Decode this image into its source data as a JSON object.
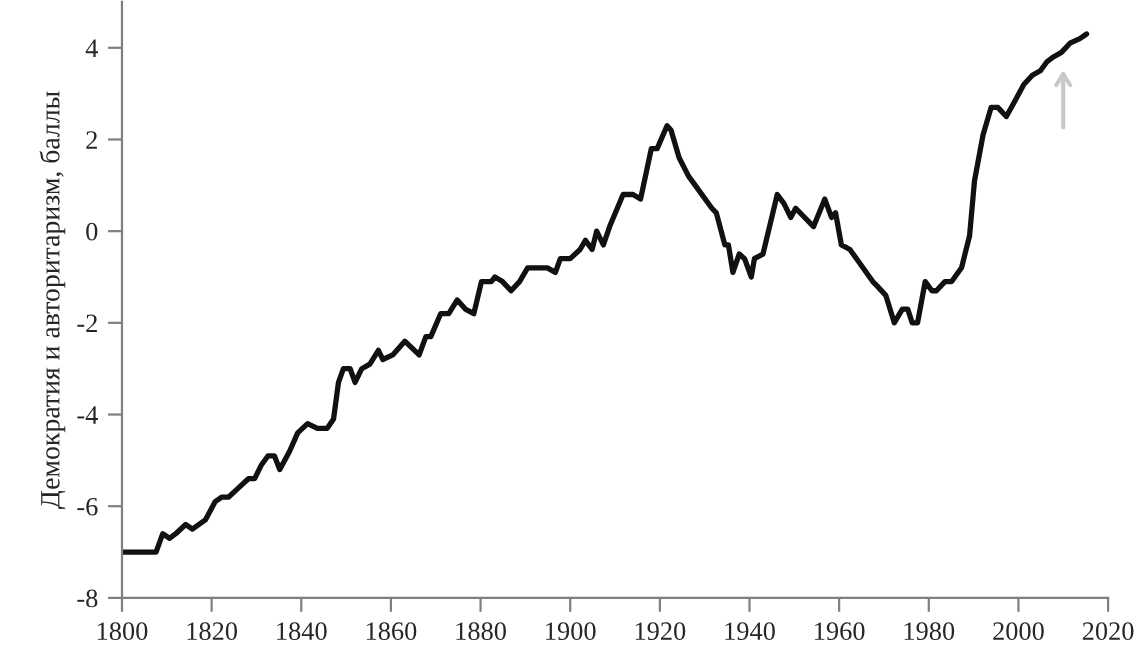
{
  "chart_data": {
    "type": "line",
    "ylabel": "Демократия и авторитаризм, баллы",
    "x": [
      1800,
      1807.6,
      1809.1,
      1810.6,
      1812,
      1814.2,
      1815.7,
      1818.6,
      1820.8,
      1822.3,
      1823.8,
      1826,
      1828.2,
      1829.6,
      1831.1,
      1832.6,
      1834,
      1835.2,
      1837.4,
      1839.2,
      1841.4,
      1843.6,
      1845.8,
      1847.2,
      1848.3,
      1849.4,
      1850.9,
      1852,
      1853.5,
      1855.3,
      1857.2,
      1858.2,
      1860.4,
      1863.1,
      1866.3,
      1867.8,
      1868.9,
      1871.1,
      1872.9,
      1874.8,
      1876.6,
      1878.5,
      1880.2,
      1882.4,
      1883.2,
      1884.9,
      1886.8,
      1888.7,
      1890.5,
      1892.7,
      1894.9,
      1896.7,
      1897.8,
      1900,
      1902.2,
      1903.4,
      1904.9,
      1905.9,
      1907.4,
      1908.8,
      1911.8,
      1914,
      1915.7,
      1918.1,
      1919.4,
      1921.6,
      1922.5,
      1924.3,
      1926.4,
      1927.9,
      1931.6,
      1932.6,
      1934.5,
      1935.3,
      1936.3,
      1937.7,
      1938.9,
      1940.4,
      1941.1,
      1943,
      1946.2,
      1947.7,
      1949.2,
      1950.3,
      1954.3,
      1956.8,
      1958.3,
      1959.2,
      1960.5,
      1962.4,
      1964.6,
      1967.5,
      1968.5,
      1970.4,
      1972.3,
      1974.1,
      1975.3,
      1976.3,
      1977.5,
      1979.2,
      1980.7,
      1981.7,
      1983.6,
      1985.1,
      1987.3,
      1989.1,
      1990.2,
      1992.1,
      1993.9,
      1995.4,
      1997.3,
      1999,
      2001.2,
      2003.1,
      2004.9,
      2006.4,
      2007.8,
      2009.6,
      2011.5,
      2013.7,
      2015.2
    ],
    "series": [
      {
        "color": "#111111",
        "values": [
          -7.0,
          -7.0,
          -6.6,
          -6.7,
          -6.6,
          -6.4,
          -6.5,
          -6.3,
          -5.9,
          -5.8,
          -5.8,
          -5.6,
          -5.4,
          -5.4,
          -5.1,
          -4.9,
          -4.9,
          -5.2,
          -4.8,
          -4.4,
          -4.2,
          -4.3,
          -4.3,
          -4.1,
          -3.3,
          -3.0,
          -3.0,
          -3.3,
          -3.0,
          -2.9,
          -2.6,
          -2.8,
          -2.7,
          -2.4,
          -2.7,
          -2.3,
          -2.3,
          -1.8,
          -1.8,
          -1.5,
          -1.7,
          -1.8,
          -1.1,
          -1.1,
          -1.0,
          -1.1,
          -1.3,
          -1.1,
          -0.8,
          -0.8,
          -0.8,
          -0.9,
          -0.6,
          -0.6,
          -0.4,
          -0.2,
          -0.4,
          0.0,
          -0.3,
          0.1,
          0.8,
          0.8,
          0.7,
          1.8,
          1.8,
          2.3,
          2.2,
          1.6,
          1.2,
          1.0,
          0.5,
          0.4,
          -0.3,
          -0.3,
          -0.9,
          -0.5,
          -0.6,
          -1.0,
          -0.6,
          -0.5,
          0.8,
          0.6,
          0.3,
          0.5,
          0.1,
          0.7,
          0.3,
          0.4,
          -0.3,
          -0.4,
          -0.7,
          -1.1,
          -1.2,
          -1.4,
          -2.0,
          -1.7,
          -1.7,
          -2.0,
          -2.0,
          -1.1,
          -1.3,
          -1.3,
          -1.1,
          -1.1,
          -0.8,
          -0.1,
          1.1,
          2.1,
          2.7,
          2.7,
          2.5,
          2.8,
          3.2,
          3.4,
          3.5,
          3.7,
          3.8,
          3.9,
          4.1,
          4.2,
          4.3
        ]
      }
    ],
    "xlim": [
      1800,
      2020
    ],
    "xticks": [
      1800,
      1820,
      1840,
      1860,
      1880,
      1900,
      1920,
      1940,
      1960,
      1980,
      2000,
      2020
    ],
    "ylim": [
      -8,
      5
    ],
    "yticks": [
      -8,
      -6,
      -4,
      -2,
      0,
      2,
      4
    ],
    "grid": false,
    "marker": "none",
    "line_style": "solid"
  }
}
